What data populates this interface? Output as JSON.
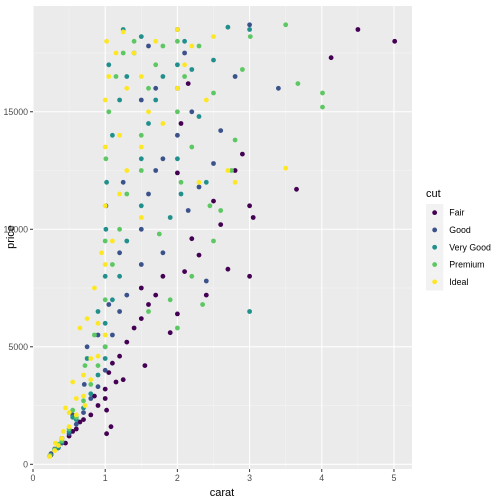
{
  "chart_data": {
    "type": "scatter",
    "title": "",
    "xlabel": "carat",
    "ylabel": "price",
    "xlim": [
      0,
      5.25
    ],
    "ylim": [
      -200,
      19500
    ],
    "x_ticks": [
      0,
      1,
      2,
      3,
      4,
      5
    ],
    "y_ticks": [
      0,
      5000,
      10000,
      15000
    ],
    "grid": true,
    "legend": {
      "title": "cut",
      "position": "right"
    },
    "series": [
      {
        "name": "Fair",
        "color": "#440154",
        "points": [
          [
            0.25,
            400
          ],
          [
            0.35,
            700
          ],
          [
            0.5,
            1200
          ],
          [
            0.6,
            1500
          ],
          [
            0.7,
            1900
          ],
          [
            0.8,
            2100
          ],
          [
            0.9,
            2500
          ],
          [
            1.0,
            3200
          ],
          [
            1.0,
            2800
          ],
          [
            1.05,
            3900
          ],
          [
            1.1,
            4300
          ],
          [
            1.2,
            4600
          ],
          [
            1.3,
            5200
          ],
          [
            1.5,
            6200
          ],
          [
            1.6,
            6800
          ],
          [
            1.7,
            7200
          ],
          [
            1.8,
            8000
          ],
          [
            1.9,
            5600
          ],
          [
            2.0,
            6400
          ],
          [
            2.0,
            12400
          ],
          [
            2.1,
            8200
          ],
          [
            2.2,
            9600
          ],
          [
            2.3,
            8900
          ],
          [
            2.5,
            11200
          ],
          [
            2.6,
            10200
          ],
          [
            2.8,
            12500
          ],
          [
            2.9,
            13200
          ],
          [
            3.0,
            8000
          ],
          [
            3.0,
            11000
          ],
          [
            3.05,
            10500
          ],
          [
            3.65,
            11700
          ],
          [
            4.13,
            17300
          ],
          [
            4.5,
            18500
          ],
          [
            5.01,
            18000
          ],
          [
            0.4,
            1100
          ],
          [
            0.45,
            900
          ],
          [
            0.55,
            1400
          ],
          [
            0.85,
            2900
          ],
          [
            1.15,
            3500
          ],
          [
            1.25,
            3600
          ],
          [
            1.4,
            5800
          ],
          [
            2.4,
            7200
          ],
          [
            2.7,
            8300
          ],
          [
            0.3,
            600
          ],
          [
            0.65,
            1800
          ],
          [
            1.02,
            2300
          ],
          [
            1.5,
            7500
          ],
          [
            2.05,
            14500
          ],
          [
            2.15,
            16200
          ],
          [
            1.02,
            1300
          ],
          [
            1.08,
            1600
          ],
          [
            1.55,
            4200
          ]
        ]
      },
      {
        "name": "Good",
        "color": "#3b528b",
        "points": [
          [
            0.25,
            450
          ],
          [
            0.3,
            650
          ],
          [
            0.4,
            900
          ],
          [
            0.5,
            1300
          ],
          [
            0.6,
            1700
          ],
          [
            0.7,
            2200
          ],
          [
            0.8,
            2800
          ],
          [
            0.9,
            3300
          ],
          [
            1.0,
            4000
          ],
          [
            1.0,
            5000
          ],
          [
            1.1,
            5500
          ],
          [
            1.2,
            6500
          ],
          [
            1.3,
            7200
          ],
          [
            1.5,
            8500
          ],
          [
            1.5,
            10000
          ],
          [
            1.6,
            11500
          ],
          [
            1.7,
            12500
          ],
          [
            1.8,
            13000
          ],
          [
            2.0,
            14000
          ],
          [
            2.0,
            16000
          ],
          [
            2.1,
            17500
          ],
          [
            2.2,
            15000
          ],
          [
            2.3,
            11800
          ],
          [
            2.5,
            12800
          ],
          [
            2.6,
            14200
          ],
          [
            3.0,
            18700
          ],
          [
            3.4,
            16000
          ],
          [
            2.8,
            16500
          ],
          [
            0.9,
            5500
          ],
          [
            1.05,
            6800
          ],
          [
            1.2,
            9000
          ],
          [
            1.5,
            15500
          ],
          [
            1.6,
            17800
          ],
          [
            2.0,
            18500
          ],
          [
            1.01,
            11000
          ],
          [
            0.71,
            3400
          ],
          [
            0.75,
            5000
          ],
          [
            1.8,
            9000
          ],
          [
            2.4,
            7800
          ],
          [
            0.55,
            2100
          ],
          [
            0.35,
            800
          ],
          [
            1.25,
            12000
          ],
          [
            1.7,
            16000
          ],
          [
            2.15,
            10800
          ]
        ]
      },
      {
        "name": "Very Good",
        "color": "#21908c",
        "points": [
          [
            0.23,
            350
          ],
          [
            0.3,
            600
          ],
          [
            0.4,
            950
          ],
          [
            0.5,
            1400
          ],
          [
            0.6,
            1900
          ],
          [
            0.7,
            2400
          ],
          [
            0.8,
            3000
          ],
          [
            0.9,
            3800
          ],
          [
            1.0,
            4500
          ],
          [
            1.0,
            6000
          ],
          [
            1.0,
            8000
          ],
          [
            1.1,
            7000
          ],
          [
            1.2,
            8000
          ],
          [
            1.3,
            9500
          ],
          [
            1.5,
            11000
          ],
          [
            1.5,
            13000
          ],
          [
            1.6,
            14500
          ],
          [
            1.7,
            15500
          ],
          [
            1.8,
            16500
          ],
          [
            2.0,
            13000
          ],
          [
            2.0,
            17000
          ],
          [
            2.1,
            18000
          ],
          [
            2.2,
            16800
          ],
          [
            2.3,
            14800
          ],
          [
            2.5,
            17200
          ],
          [
            2.7,
            18600
          ],
          [
            3.0,
            6500
          ],
          [
            3.0,
            18500
          ],
          [
            1.01,
            10000
          ],
          [
            1.02,
            12000
          ],
          [
            1.1,
            14000
          ],
          [
            1.2,
            15500
          ],
          [
            0.9,
            6500
          ],
          [
            0.75,
            4500
          ],
          [
            1.3,
            16500
          ],
          [
            1.4,
            17500
          ],
          [
            1.5,
            18200
          ],
          [
            1.9,
            10500
          ],
          [
            2.4,
            12000
          ],
          [
            0.55,
            2000
          ],
          [
            0.35,
            700
          ],
          [
            1.05,
            17000
          ],
          [
            1.25,
            18500
          ],
          [
            2.05,
            11500
          ]
        ]
      },
      {
        "name": "Premium",
        "color": "#5dc863",
        "points": [
          [
            0.24,
            380
          ],
          [
            0.3,
            620
          ],
          [
            0.4,
            1000
          ],
          [
            0.5,
            1500
          ],
          [
            0.6,
            2000
          ],
          [
            0.7,
            2700
          ],
          [
            0.8,
            3400
          ],
          [
            0.9,
            4200
          ],
          [
            1.0,
            5000
          ],
          [
            1.0,
            7000
          ],
          [
            1.0,
            9500
          ],
          [
            1.1,
            8500
          ],
          [
            1.2,
            10000
          ],
          [
            1.3,
            11500
          ],
          [
            1.5,
            12500
          ],
          [
            1.5,
            14000
          ],
          [
            1.6,
            16000
          ],
          [
            1.7,
            17000
          ],
          [
            1.8,
            17800
          ],
          [
            2.0,
            15000
          ],
          [
            2.0,
            18000
          ],
          [
            2.1,
            16500
          ],
          [
            2.2,
            13500
          ],
          [
            2.3,
            17800
          ],
          [
            2.5,
            15800
          ],
          [
            2.6,
            10800
          ],
          [
            2.75,
            12500
          ],
          [
            3.01,
            18200
          ],
          [
            3.5,
            18700
          ],
          [
            3.67,
            16200
          ],
          [
            4.01,
            15200
          ],
          [
            4.01,
            15800
          ],
          [
            2.5,
            9500
          ],
          [
            2.2,
            8000
          ],
          [
            1.9,
            7000
          ],
          [
            2.0,
            5800
          ],
          [
            2.35,
            6800
          ],
          [
            1.01,
            13000
          ],
          [
            1.05,
            15000
          ],
          [
            1.15,
            16500
          ],
          [
            1.25,
            17500
          ],
          [
            0.85,
            5500
          ],
          [
            0.72,
            4200
          ],
          [
            1.4,
            18000
          ],
          [
            2.8,
            13800
          ],
          [
            2.9,
            16800
          ],
          [
            0.55,
            2300
          ],
          [
            0.35,
            850
          ],
          [
            1.6,
            6500
          ],
          [
            2.45,
            11000
          ],
          [
            1.75,
            9800
          ],
          [
            2.05,
            12000
          ]
        ]
      },
      {
        "name": "Ideal",
        "color": "#fde725",
        "points": [
          [
            0.23,
            330
          ],
          [
            0.3,
            580
          ],
          [
            0.35,
            800
          ],
          [
            0.4,
            1100
          ],
          [
            0.5,
            1600
          ],
          [
            0.5,
            2200
          ],
          [
            0.6,
            2100
          ],
          [
            0.6,
            2800
          ],
          [
            0.7,
            2900
          ],
          [
            0.7,
            3800
          ],
          [
            0.8,
            3600
          ],
          [
            0.8,
            4500
          ],
          [
            0.9,
            4600
          ],
          [
            0.9,
            6000
          ],
          [
            1.0,
            5500
          ],
          [
            1.0,
            8500
          ],
          [
            1.0,
            11000
          ],
          [
            1.0,
            13500
          ],
          [
            1.0,
            15500
          ],
          [
            1.05,
            16500
          ],
          [
            1.1,
            9500
          ],
          [
            1.2,
            11500
          ],
          [
            1.2,
            14000
          ],
          [
            1.3,
            12500
          ],
          [
            1.3,
            16000
          ],
          [
            1.5,
            10500
          ],
          [
            1.5,
            13500
          ],
          [
            1.5,
            16500
          ],
          [
            1.6,
            15000
          ],
          [
            1.7,
            18000
          ],
          [
            1.8,
            14500
          ],
          [
            2.0,
            16000
          ],
          [
            2.0,
            18500
          ],
          [
            2.1,
            17000
          ],
          [
            2.2,
            17800
          ],
          [
            2.3,
            12000
          ],
          [
            2.4,
            15500
          ],
          [
            2.5,
            18200
          ],
          [
            2.7,
            12500
          ],
          [
            2.8,
            12000
          ],
          [
            3.5,
            12600
          ],
          [
            0.65,
            5800
          ],
          [
            0.55,
            3500
          ],
          [
            0.45,
            2400
          ],
          [
            0.75,
            6200
          ],
          [
            0.85,
            7500
          ],
          [
            0.95,
            9000
          ],
          [
            1.15,
            17500
          ],
          [
            1.25,
            18400
          ],
          [
            1.4,
            17500
          ],
          [
            1.02,
            18000
          ],
          [
            0.72,
            2500
          ],
          [
            0.31,
            900
          ],
          [
            0.42,
            1400
          ]
        ]
      }
    ]
  }
}
